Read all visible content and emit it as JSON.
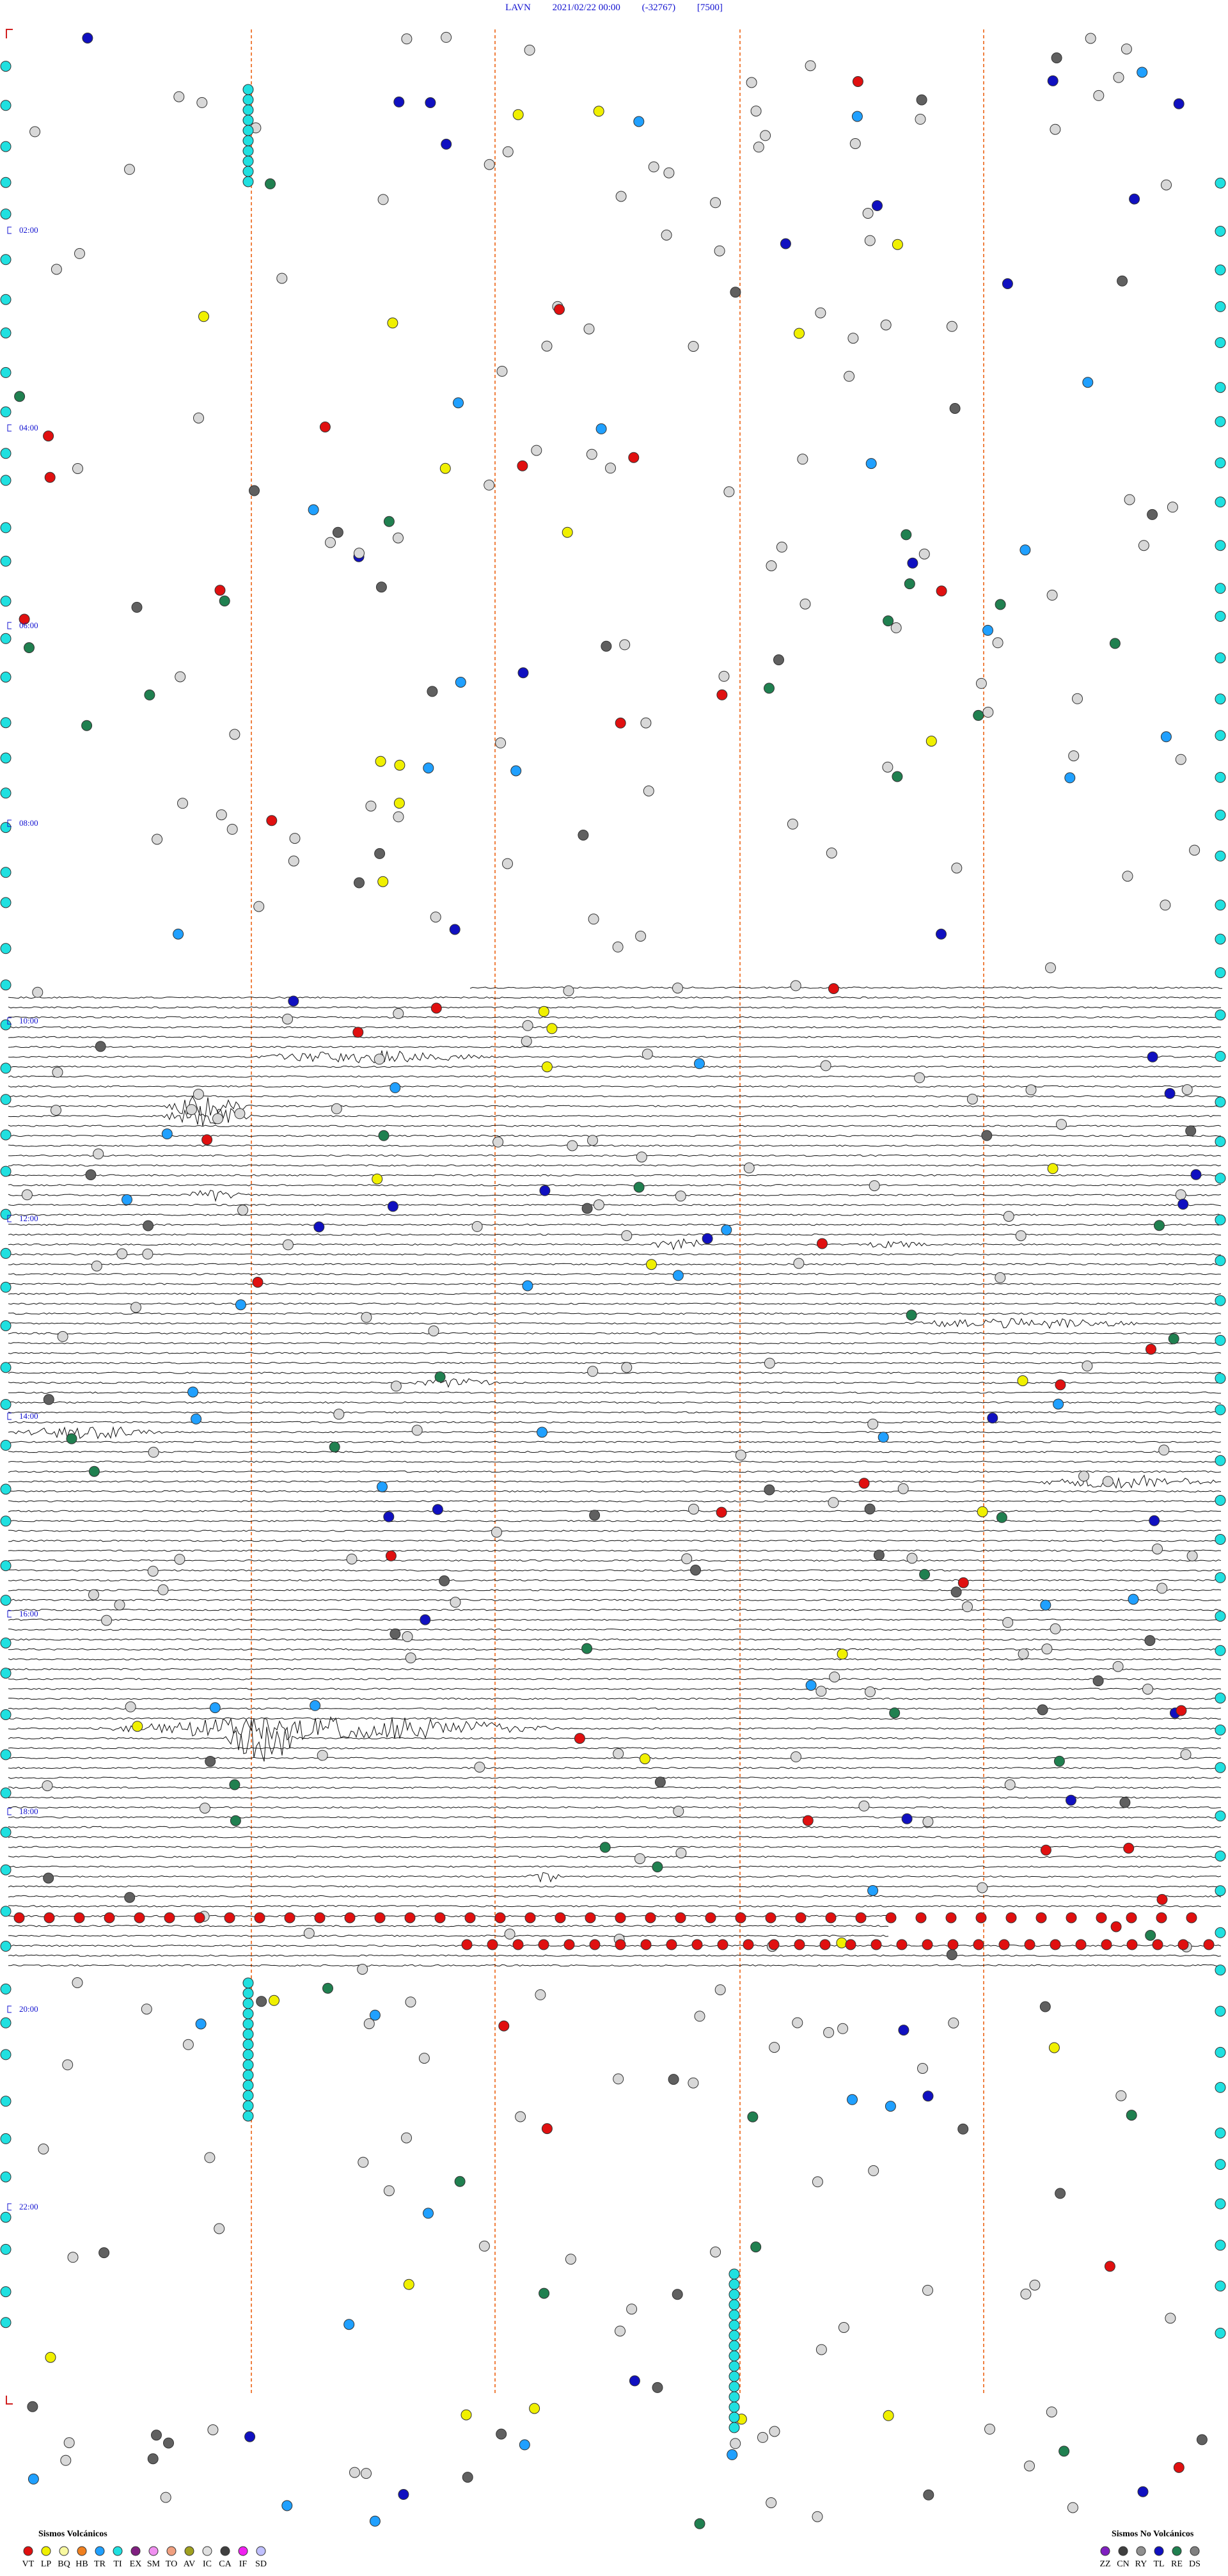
{
  "header": {
    "station": "LAVN",
    "datetime": "2021/02/22 00:00",
    "value": "(-32767)",
    "scale": "[7500]"
  },
  "time_labels": [
    "02:00",
    "04:00",
    "06:00",
    "08:00",
    "10:00",
    "12:00",
    "14:00",
    "16:00",
    "18:00",
    "20:00",
    "22:00"
  ],
  "legend": {
    "volcanic": {
      "title": "Sismos Volcánicos",
      "items": [
        {
          "code": "VT",
          "color": "#e01010"
        },
        {
          "code": "LP",
          "color": "#f0f000"
        },
        {
          "code": "BQ",
          "color": "#f8f8a0"
        },
        {
          "code": "HB",
          "color": "#f08020"
        },
        {
          "code": "TR",
          "color": "#20a0ff"
        },
        {
          "code": "TI",
          "color": "#20e0e0"
        },
        {
          "code": "EX",
          "color": "#802080"
        },
        {
          "code": "SM",
          "color": "#f090f0"
        },
        {
          "code": "TO",
          "color": "#f0a080"
        },
        {
          "code": "AV",
          "color": "#a0a020"
        },
        {
          "code": "IC",
          "color": "#e0e0e0"
        },
        {
          "code": "CA",
          "color": "#404040"
        },
        {
          "code": "IF",
          "color": "#f020f0"
        },
        {
          "code": "SD",
          "color": "#c0c0ff"
        }
      ]
    },
    "non_volcanic": {
      "title": "Sismos No Volcánicos",
      "items": [
        {
          "code": "ZZ",
          "color": "#8020c0"
        },
        {
          "code": "CN",
          "color": "#404040"
        },
        {
          "code": "RY",
          "color": "#909090"
        },
        {
          "code": "TL",
          "color": "#1010c0"
        },
        {
          "code": "RE",
          "color": "#208050"
        },
        {
          "code": "DS",
          "color": "#808080"
        }
      ]
    }
  }
}
